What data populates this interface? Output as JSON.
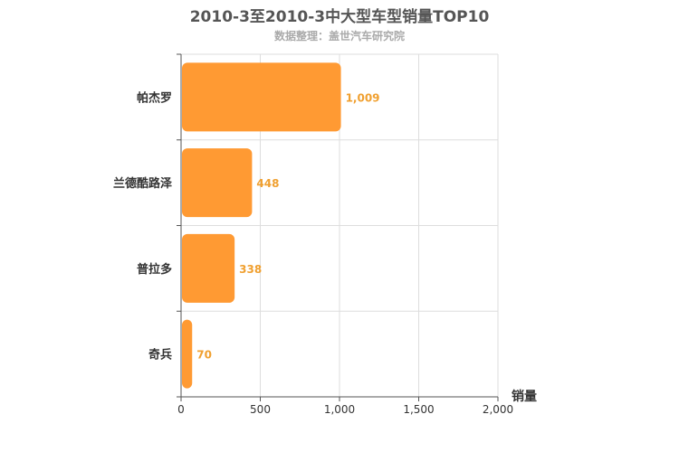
{
  "colors": {
    "bar": "#ff9a33",
    "value_label": "#f0a030",
    "grid": "#dddddd",
    "axis": "#555555"
  },
  "chart_data": {
    "type": "bar",
    "orientation": "horizontal",
    "title": "2010-3至2010-3中大型车型销量TOP10",
    "subtitle": "数据整理：盖世汽车研究院",
    "xlabel": "销量",
    "ylabel": "",
    "categories": [
      "帕杰罗",
      "兰德酷路泽",
      "普拉多",
      "奇兵"
    ],
    "values": [
      1009,
      448,
      338,
      70
    ],
    "value_labels": [
      "1,009",
      "448",
      "338",
      "70"
    ],
    "xlim": [
      0,
      2000
    ],
    "xticks": [
      0,
      500,
      1000,
      1500,
      2000
    ],
    "xtick_labels": [
      "0",
      "500",
      "1,000",
      "1,500",
      "2,000"
    ],
    "grid": true,
    "legend": "none"
  }
}
